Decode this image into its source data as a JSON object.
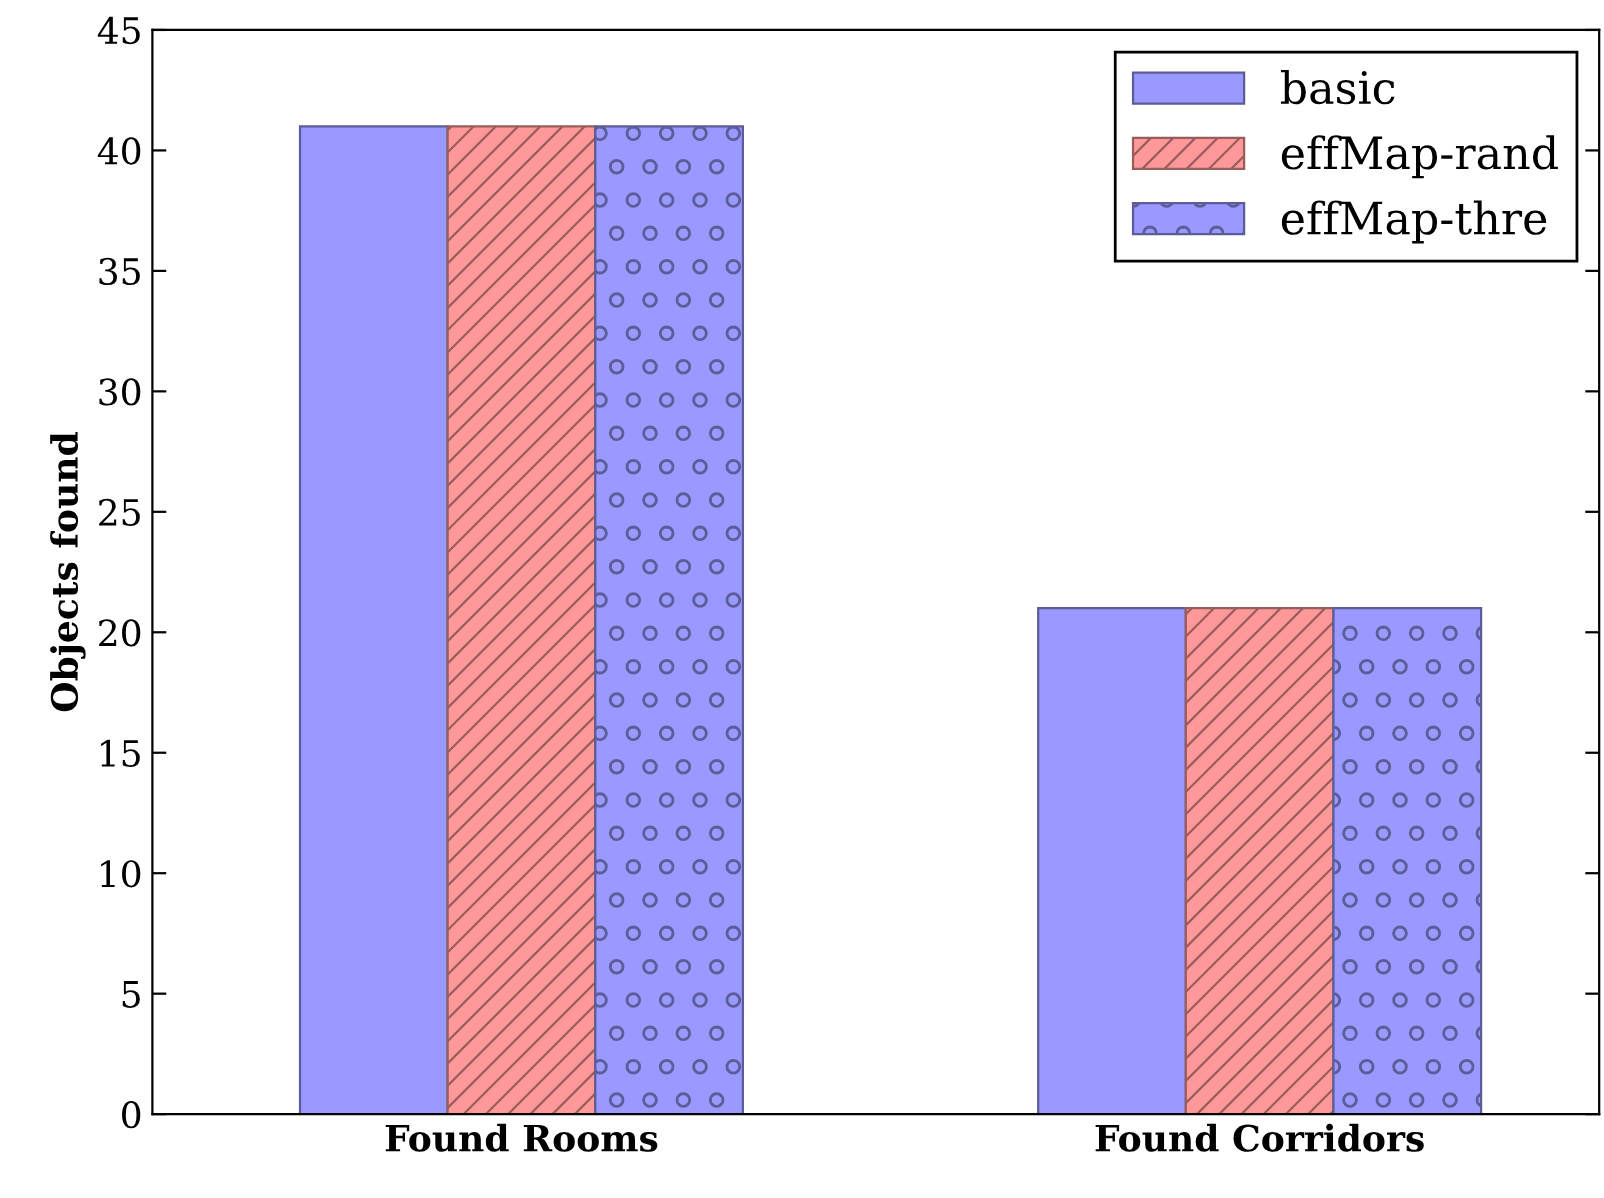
{
  "chart_data": {
    "type": "bar",
    "ylabel": "Objects found",
    "categories": [
      "Found Rooms",
      "Found Corridors"
    ],
    "series": [
      {
        "name": "basic",
        "color": "#9999ff",
        "values": [
          41,
          21
        ]
      },
      {
        "name": "effMap-rand",
        "color": "#ff9999",
        "values": [
          41,
          21
        ]
      },
      {
        "name": "effMap-thre",
        "color": "#9999ff",
        "values": [
          41,
          21
        ]
      }
    ],
    "ylim": [
      0,
      45
    ],
    "yticks": [
      0,
      5,
      10,
      15,
      20,
      25,
      30,
      35,
      40,
      45
    ],
    "grid": false,
    "legend": "top right"
  }
}
